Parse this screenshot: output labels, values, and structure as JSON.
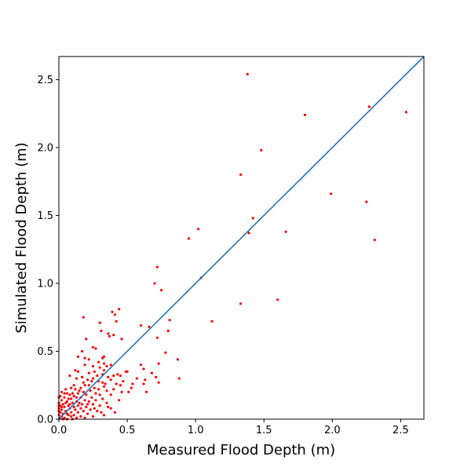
{
  "chart_data": {
    "type": "scatter",
    "title": "",
    "xlabel": "Measured Flood Depth (m)",
    "ylabel": "Simulated Flood Depth (m)",
    "xlim": [
      0,
      2.67
    ],
    "ylim": [
      0,
      2.67
    ],
    "xticks": [
      0.0,
      0.5,
      1.0,
      1.5,
      2.0,
      2.5
    ],
    "yticks": [
      0.0,
      0.5,
      1.0,
      1.5,
      2.0,
      2.5
    ],
    "tick_labels": [
      "0.0",
      "0.5",
      "1.0",
      "1.5",
      "2.0",
      "2.5"
    ],
    "grid": false,
    "point_color": "#ff0000",
    "line_color": "#1f77b4",
    "reference_line": {
      "x": [
        0,
        2.67
      ],
      "y": [
        0,
        2.67
      ]
    },
    "points": [
      [
        1.38,
        2.54
      ],
      [
        2.27,
        2.3
      ],
      [
        2.54,
        2.26
      ],
      [
        1.8,
        2.24
      ],
      [
        1.48,
        1.98
      ],
      [
        1.33,
        1.8
      ],
      [
        1.99,
        1.66
      ],
      [
        2.25,
        1.6
      ],
      [
        1.42,
        1.48
      ],
      [
        1.02,
        1.4
      ],
      [
        0.95,
        1.33
      ],
      [
        1.66,
        1.38
      ],
      [
        1.39,
        1.37
      ],
      [
        2.31,
        1.32
      ],
      [
        0.72,
        1.12
      ],
      [
        1.04,
        1.04
      ],
      [
        0.7,
        1.0
      ],
      [
        0.75,
        0.95
      ],
      [
        1.6,
        0.88
      ],
      [
        1.33,
        0.85
      ],
      [
        0.44,
        0.81
      ],
      [
        0.39,
        0.79
      ],
      [
        0.41,
        0.77
      ],
      [
        0.18,
        0.75
      ],
      [
        0.81,
        0.73
      ],
      [
        0.42,
        0.72
      ],
      [
        1.12,
        0.72
      ],
      [
        0.3,
        0.71
      ],
      [
        0.6,
        0.69
      ],
      [
        0.66,
        0.68
      ],
      [
        0.8,
        0.65
      ],
      [
        0.31,
        0.65
      ],
      [
        0.36,
        0.63
      ],
      [
        0.4,
        0.62
      ],
      [
        0.37,
        0.61
      ],
      [
        0.72,
        0.6
      ],
      [
        0.46,
        0.59
      ],
      [
        0.2,
        0.59
      ],
      [
        0.25,
        0.53
      ],
      [
        0.27,
        0.52
      ],
      [
        0.17,
        0.5
      ],
      [
        0.78,
        0.49
      ],
      [
        0.14,
        0.46
      ],
      [
        0.19,
        0.45
      ],
      [
        0.32,
        0.45
      ],
      [
        0.33,
        0.46
      ],
      [
        0.22,
        0.44
      ],
      [
        0.87,
        0.44
      ],
      [
        0.29,
        0.42
      ],
      [
        0.33,
        0.41
      ],
      [
        0.6,
        0.4
      ],
      [
        0.73,
        0.41
      ],
      [
        0.19,
        0.4
      ],
      [
        0.38,
        0.4
      ],
      [
        0.25,
        0.39
      ],
      [
        0.35,
        0.39
      ],
      [
        0.3,
        0.38
      ],
      [
        0.62,
        0.37
      ],
      [
        0.12,
        0.36
      ],
      [
        0.33,
        0.36
      ],
      [
        0.49,
        0.35
      ],
      [
        0.5,
        0.35
      ],
      [
        0.26,
        0.35
      ],
      [
        0.14,
        0.35
      ],
      [
        0.68,
        0.34
      ],
      [
        0.22,
        0.34
      ],
      [
        0.43,
        0.33
      ],
      [
        0.32,
        0.33
      ],
      [
        0.4,
        0.32
      ],
      [
        0.45,
        0.32
      ],
      [
        0.08,
        0.32
      ],
      [
        0.71,
        0.31
      ],
      [
        0.36,
        0.31
      ],
      [
        0.17,
        0.31
      ],
      [
        0.88,
        0.3
      ],
      [
        0.25,
        0.3
      ],
      [
        0.13,
        0.3
      ],
      [
        0.63,
        0.29
      ],
      [
        0.38,
        0.29
      ],
      [
        0.21,
        0.29
      ],
      [
        0.29,
        0.28
      ],
      [
        0.32,
        0.27
      ],
      [
        0.18,
        0.27
      ],
      [
        0.73,
        0.27
      ],
      [
        0.42,
        0.26
      ],
      [
        0.62,
        0.26
      ],
      [
        0.54,
        0.26
      ],
      [
        0.22,
        0.25
      ],
      [
        0.45,
        0.25
      ],
      [
        0.11,
        0.25
      ],
      [
        0.33,
        0.24
      ],
      [
        0.26,
        0.23
      ],
      [
        0.16,
        0.23
      ],
      [
        0.09,
        0.23
      ],
      [
        0.4,
        0.22
      ],
      [
        0.29,
        0.22
      ],
      [
        0.05,
        0.22
      ],
      [
        0.12,
        0.22
      ],
      [
        0.23,
        0.21
      ],
      [
        0.35,
        0.21
      ],
      [
        0.18,
        0.2
      ],
      [
        0.46,
        0.2
      ],
      [
        0.51,
        0.2
      ],
      [
        0.64,
        0.2
      ],
      [
        0.02,
        0.2
      ],
      [
        0.06,
        0.19
      ],
      [
        0.14,
        0.19
      ],
      [
        0.27,
        0.19
      ],
      [
        0.3,
        0.18
      ],
      [
        0.08,
        0.18
      ],
      [
        0.2,
        0.18
      ],
      [
        0.38,
        0.18
      ],
      [
        0.01,
        0.17
      ],
      [
        0.11,
        0.17
      ],
      [
        0.24,
        0.16
      ],
      [
        0.16,
        0.16
      ],
      [
        0.04,
        0.16
      ],
      [
        0.32,
        0.15
      ],
      [
        0.09,
        0.15
      ],
      [
        0.19,
        0.14
      ],
      [
        0.27,
        0.14
      ],
      [
        0.02,
        0.14
      ],
      [
        0.13,
        0.13
      ],
      [
        0.06,
        0.13
      ],
      [
        0.22,
        0.13
      ],
      [
        0.35,
        0.12
      ],
      [
        0.1,
        0.12
      ],
      [
        0.17,
        0.11
      ],
      [
        0.03,
        0.11
      ],
      [
        0.25,
        0.11
      ],
      [
        0.07,
        0.1
      ],
      [
        0.14,
        0.1
      ],
      [
        0.3,
        0.1
      ],
      [
        0.01,
        0.1
      ],
      [
        0.2,
        0.09
      ],
      [
        0.11,
        0.09
      ],
      [
        0.04,
        0.09
      ],
      [
        0.38,
        0.08
      ],
      [
        0.16,
        0.08
      ],
      [
        0.08,
        0.08
      ],
      [
        0.23,
        0.07
      ],
      [
        0.02,
        0.07
      ],
      [
        0.12,
        0.07
      ],
      [
        0.05,
        0.06
      ],
      [
        0.18,
        0.06
      ],
      [
        0.28,
        0.06
      ],
      [
        0.09,
        0.05
      ],
      [
        0.01,
        0.05
      ],
      [
        0.14,
        0.05
      ],
      [
        0.06,
        0.04
      ],
      [
        0.21,
        0.04
      ],
      [
        0.03,
        0.04
      ],
      [
        0.11,
        0.03
      ],
      [
        0.33,
        0.03
      ],
      [
        0.07,
        0.03
      ],
      [
        0.16,
        0.02
      ],
      [
        0.02,
        0.02
      ],
      [
        0.25,
        0.02
      ],
      [
        0.09,
        0.02
      ],
      [
        0.04,
        0.01
      ],
      [
        0.13,
        0.01
      ],
      [
        0.01,
        0.01
      ],
      [
        0.19,
        0.01
      ],
      [
        0.06,
        0.0
      ],
      [
        0.1,
        0.0
      ],
      [
        0.03,
        0.0
      ],
      [
        0.0,
        0.03
      ],
      [
        0.0,
        0.08
      ],
      [
        0.0,
        0.12
      ],
      [
        0.0,
        0.16
      ],
      [
        0.0,
        0.06
      ],
      [
        0.0,
        0.1
      ],
      [
        0.04,
        0.19
      ],
      [
        0.07,
        0.15
      ],
      [
        0.15,
        0.21
      ],
      [
        0.1,
        0.19
      ],
      [
        0.13,
        0.16
      ],
      [
        0.05,
        0.12
      ],
      [
        0.08,
        0.11
      ],
      [
        0.02,
        0.09
      ],
      [
        0.15,
        0.12
      ],
      [
        0.21,
        0.11
      ],
      [
        0.26,
        0.08
      ],
      [
        0.31,
        0.05
      ],
      [
        0.36,
        0.09
      ],
      [
        0.44,
        0.14
      ],
      [
        0.41,
        0.05
      ],
      [
        0.24,
        0.28
      ],
      [
        0.28,
        0.32
      ],
      [
        0.19,
        0.25
      ],
      [
        0.34,
        0.26
      ],
      [
        0.47,
        0.28
      ],
      [
        0.53,
        0.23
      ],
      [
        0.57,
        0.3
      ]
    ]
  }
}
